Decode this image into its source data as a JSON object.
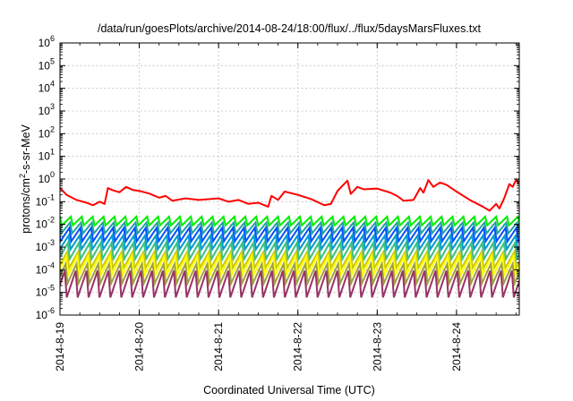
{
  "chart_data": {
    "type": "line",
    "title": "/data/run/goesPlots/archive/2014-08-24/18:00/flux/../flux/5daysMarsFluxes.txt",
    "xlabel": "Coordinated Universal Time (UTC)",
    "ylabel_parts": {
      "base": "protons/cm",
      "exp": "2",
      "rest": "-s-sr-MeV"
    },
    "y_scale": "log",
    "ylim": [
      1e-06,
      1000000.0
    ],
    "y_ticks": [
      {
        "base": "10",
        "exp": "-6",
        "value": 1e-06
      },
      {
        "base": "10",
        "exp": "-5",
        "value": 1e-05
      },
      {
        "base": "10",
        "exp": "-4",
        "value": 0.0001
      },
      {
        "base": "10",
        "exp": "-3",
        "value": 0.001
      },
      {
        "base": "10",
        "exp": "-2",
        "value": 0.01
      },
      {
        "base": "10",
        "exp": "-1",
        "value": 0.1
      },
      {
        "base": "10",
        "exp": "0",
        "value": 1
      },
      {
        "base": "10",
        "exp": "1",
        "value": 10
      },
      {
        "base": "10",
        "exp": "2",
        "value": 100
      },
      {
        "base": "10",
        "exp": "3",
        "value": 1000
      },
      {
        "base": "10",
        "exp": "4",
        "value": 10000
      },
      {
        "base": "10",
        "exp": "5",
        "value": 100000
      },
      {
        "base": "10",
        "exp": "6",
        "value": 1000000
      }
    ],
    "xlim": [
      "2014-08-19T00:00",
      "2014-08-24T19:00"
    ],
    "x_ticks": [
      {
        "label": "2014-8-19",
        "value": "2014-08-19T00:00"
      },
      {
        "label": "2014-8-20",
        "value": "2014-08-20T00:00"
      },
      {
        "label": "2014-8-21",
        "value": "2014-08-21T00:00"
      },
      {
        "label": "2014-8-22",
        "value": "2014-08-22T00:00"
      },
      {
        "label": "2014-8-23",
        "value": "2014-08-23T00:00"
      },
      {
        "label": "2014-8-24",
        "value": "2014-08-24T00:00"
      }
    ],
    "grid": true,
    "legend": "none",
    "sawtooth_period_hours": 3.3,
    "series": [
      {
        "color": "#ff0000",
        "style": "smooth",
        "points": [
          [
            "2014-08-19T00:00",
            0.4
          ],
          [
            "2014-08-19T02:00",
            0.2
          ],
          [
            "2014-08-19T05:00",
            0.12
          ],
          [
            "2014-08-19T08:00",
            0.09
          ],
          [
            "2014-08-19T10:00",
            0.07
          ],
          [
            "2014-08-19T12:00",
            0.1
          ],
          [
            "2014-08-19T13:30",
            0.08
          ],
          [
            "2014-08-19T14:30",
            0.4
          ],
          [
            "2014-08-19T16:00",
            0.32
          ],
          [
            "2014-08-19T18:00",
            0.26
          ],
          [
            "2014-08-19T20:00",
            0.45
          ],
          [
            "2014-08-19T22:00",
            0.33
          ],
          [
            "2014-08-20T00:00",
            0.3
          ],
          [
            "2014-08-20T03:00",
            0.23
          ],
          [
            "2014-08-20T06:00",
            0.15
          ],
          [
            "2014-08-20T08:00",
            0.18
          ],
          [
            "2014-08-20T10:00",
            0.11
          ],
          [
            "2014-08-20T14:00",
            0.14
          ],
          [
            "2014-08-20T18:00",
            0.12
          ],
          [
            "2014-08-21T00:00",
            0.14
          ],
          [
            "2014-08-21T03:00",
            0.1
          ],
          [
            "2014-08-21T06:00",
            0.12
          ],
          [
            "2014-08-21T09:00",
            0.08
          ],
          [
            "2014-08-21T12:00",
            0.09
          ],
          [
            "2014-08-21T15:00",
            0.06
          ],
          [
            "2014-08-21T16:00",
            0.18
          ],
          [
            "2014-08-21T18:00",
            0.12
          ],
          [
            "2014-08-21T20:00",
            0.28
          ],
          [
            "2014-08-22T00:00",
            0.2
          ],
          [
            "2014-08-22T04:00",
            0.13
          ],
          [
            "2014-08-22T08:00",
            0.07
          ],
          [
            "2014-08-22T10:00",
            0.08
          ],
          [
            "2014-08-22T12:00",
            0.3
          ],
          [
            "2014-08-22T15:00",
            0.85
          ],
          [
            "2014-08-22T16:00",
            0.22
          ],
          [
            "2014-08-22T18:00",
            0.45
          ],
          [
            "2014-08-22T20:00",
            0.35
          ],
          [
            "2014-08-23T00:00",
            0.38
          ],
          [
            "2014-08-23T04:00",
            0.25
          ],
          [
            "2014-08-23T06:00",
            0.18
          ],
          [
            "2014-08-23T08:00",
            0.11
          ],
          [
            "2014-08-23T11:00",
            0.12
          ],
          [
            "2014-08-23T13:00",
            0.4
          ],
          [
            "2014-08-23T14:00",
            0.25
          ],
          [
            "2014-08-23T15:30",
            0.9
          ],
          [
            "2014-08-23T17:00",
            0.45
          ],
          [
            "2014-08-23T19:00",
            0.7
          ],
          [
            "2014-08-23T21:00",
            0.55
          ],
          [
            "2014-08-24T00:00",
            0.28
          ],
          [
            "2014-08-24T04:00",
            0.12
          ],
          [
            "2014-08-24T08:00",
            0.06
          ],
          [
            "2014-08-24T10:00",
            0.04
          ],
          [
            "2014-08-24T12:00",
            0.08
          ],
          [
            "2014-08-24T13:00",
            0.05
          ],
          [
            "2014-08-24T14:30",
            0.15
          ],
          [
            "2014-08-24T16:00",
            0.6
          ],
          [
            "2014-08-24T17:00",
            0.45
          ],
          [
            "2014-08-24T18:00",
            0.9
          ],
          [
            "2014-08-24T19:00",
            0.6
          ]
        ]
      },
      {
        "color": "#00ee00",
        "style": "sawtooth",
        "high": 0.022,
        "low": 0.009
      },
      {
        "color": "#20a0a0",
        "style": "sawtooth",
        "high": 0.012,
        "low": 0.004
      },
      {
        "color": "#0050ff",
        "style": "sawtooth",
        "high": 0.007,
        "low": 0.0018
      },
      {
        "color": "#009bd0",
        "style": "sawtooth",
        "high": 0.0032,
        "low": 0.0008
      },
      {
        "color": "#3cc080",
        "style": "sawtooth",
        "high": 0.0015,
        "low": 0.0003
      },
      {
        "color": "#c8c800",
        "style": "sawtooth",
        "high": 0.0006,
        "low": 0.00012
      },
      {
        "color": "#ffff00",
        "style": "sawtooth",
        "high": 0.0004,
        "low": 6e-05
      },
      {
        "color": "#a0a040",
        "style": "sawtooth",
        "high": 0.00018,
        "low": 2.5e-05
      },
      {
        "color": "#993366",
        "style": "sawtooth",
        "high": 9e-05,
        "low": 6e-06
      }
    ]
  }
}
